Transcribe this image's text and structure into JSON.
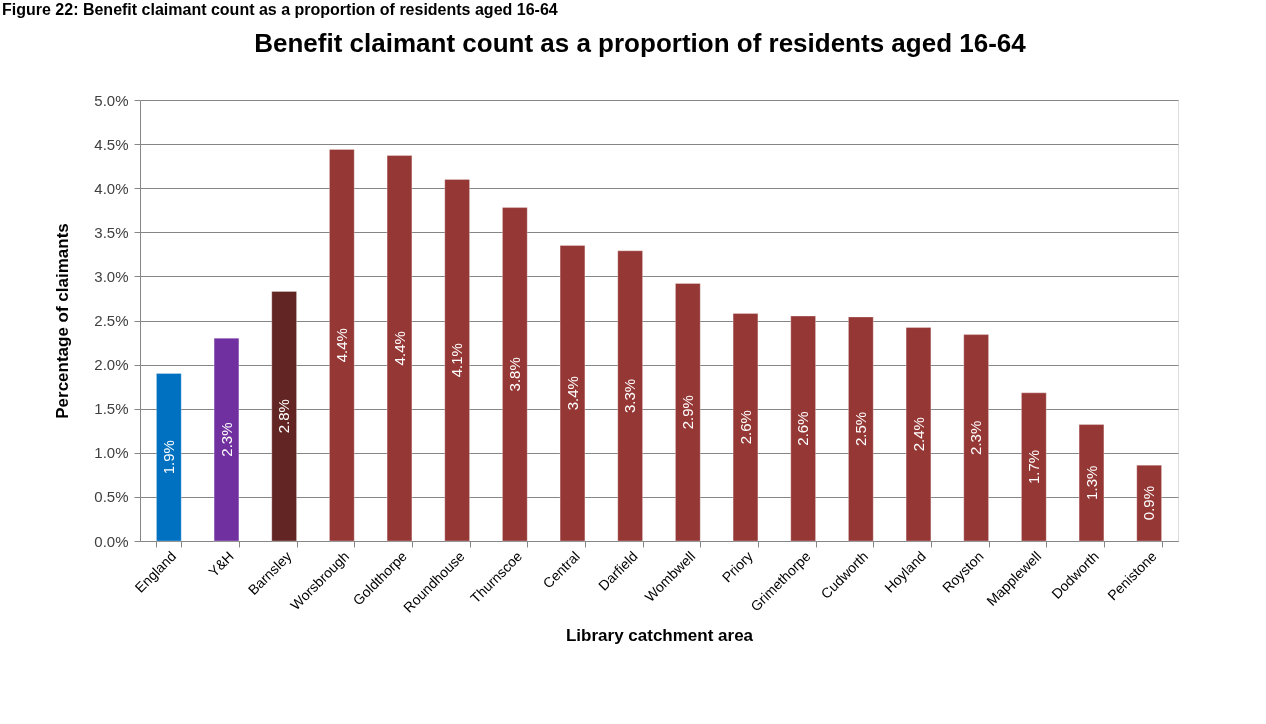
{
  "chart_data": {
    "type": "bar",
    "title": "Benefit claimant count as a proportion of residents aged 16-64",
    "xlabel": "Library catchment area",
    "ylabel": "Percentage of claimants",
    "categories": [
      "England",
      "Y&H",
      "Barnsley",
      "Worsbrough",
      "Goldthorpe",
      "Roundhouse",
      "Thurnscoe",
      "Central",
      "Darfield",
      "Wombwell",
      "Priory",
      "Grimethorpe",
      "Cudworth",
      "Hoyland",
      "Royston",
      "Mapplewell",
      "Dodworth",
      "Penistone"
    ],
    "values": [
      1.9,
      2.3,
      2.83,
      4.44,
      4.37,
      4.1,
      3.78,
      3.35,
      3.29,
      2.92,
      2.58,
      2.55,
      2.54,
      2.42,
      2.34,
      1.68,
      1.32,
      0.86
    ],
    "colors": [
      "#0070c0",
      "#7030a0",
      "#632523",
      "#953735",
      "#953735",
      "#953735",
      "#953735",
      "#953735",
      "#953735",
      "#953735",
      "#953735",
      "#953735",
      "#953735",
      "#953735",
      "#953735",
      "#953735",
      "#953735",
      "#953735"
    ],
    "value_labels": [
      "1.9%",
      "2.3%",
      "2.8%",
      "4.4%",
      "4.4%",
      "4.1%",
      "3.8%",
      "3.4%",
      "3.3%",
      "2.9%",
      "2.6%",
      "2.6%",
      "2.5%",
      "2.4%",
      "2.3%",
      "1.7%",
      "1.3%",
      "0.9%"
    ],
    "ylim": [
      0,
      5
    ],
    "yticks": [
      {
        "value": 0,
        "label": "0.0%"
      },
      {
        "value": 0.5,
        "label": "0.5%"
      },
      {
        "value": 1,
        "label": "1.0%"
      },
      {
        "value": 1.5,
        "label": "1.5%"
      },
      {
        "value": 2,
        "label": "2.0%"
      },
      {
        "value": 2.5,
        "label": "2.5%"
      },
      {
        "value": 3,
        "label": "3.0%"
      },
      {
        "value": 3.5,
        "label": "3.5%"
      },
      {
        "value": 4,
        "label": "4.0%"
      },
      {
        "value": 4.5,
        "label": "4.5%"
      },
      {
        "value": 5,
        "label": "5.0%"
      }
    ],
    "grid": "y",
    "annotations": [
      "Figure 22: Benefit claimant count as a proportion of residents aged 16-64"
    ]
  }
}
